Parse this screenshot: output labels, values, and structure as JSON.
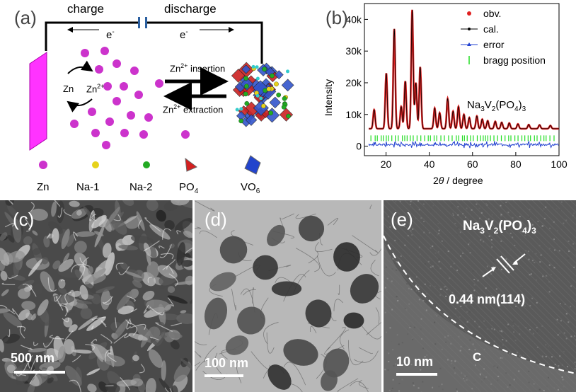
{
  "panel_a": {
    "label": "(a)",
    "charge": "charge",
    "discharge": "discharge",
    "electron_left": "e",
    "electron_right": "e",
    "electron_sup": "-",
    "zn": "Zn",
    "zn2": "Zn",
    "zn2_sup": "2+",
    "insertion_pre": "Zn",
    "insertion_sup": "2+",
    "insertion_post": " insertion",
    "extraction_pre": "Zn",
    "extraction_sup": "2+",
    "extraction_post": " extraction",
    "legend": [
      {
        "label": "Zn",
        "color": "#cc33cc"
      },
      {
        "label": "Na-1",
        "color": "#e6d21a"
      },
      {
        "label": "Na-2",
        "color": "#22aa22"
      },
      {
        "label": "PO",
        "sub": "4",
        "color": "#d42020"
      },
      {
        "label": "VO",
        "sub": "6",
        "color": "#2244cc"
      }
    ],
    "colors": {
      "zn_ion": "#cc33cc",
      "electrode": "#ff33ff",
      "wire": "#000000"
    }
  },
  "panel_b": {
    "label": "(b)",
    "compound": {
      "t1": "Na",
      "s1": "3",
      "t2": "V",
      "s2": "2",
      "t3": "(PO",
      "s3": "4",
      "t4": ")",
      "s4": "3"
    }
  },
  "chart_data": {
    "type": "line",
    "xlabel_pre": "2",
    "xlabel_theta": "θ",
    "xlabel_post": "/ degree",
    "ylabel": "Intensity",
    "xlim": [
      10,
      100
    ],
    "ylim": [
      -3000,
      45000
    ],
    "x_ticks": [
      "20",
      "40",
      "60",
      "80",
      "100"
    ],
    "y_ticks": [
      "0",
      "10k",
      "20k",
      "30k",
      "40k"
    ],
    "legend_placement": "top-right",
    "series": [
      {
        "name": "obv.",
        "color": "#e02020",
        "marker": "circle"
      },
      {
        "name": "cal.",
        "color": "#000000",
        "marker": "dot"
      },
      {
        "name": "error",
        "color": "#2040d0",
        "marker": "triangle"
      },
      {
        "name": "bragg position",
        "color": "#22dd22",
        "marker": "tick"
      }
    ],
    "background": 5500,
    "peaks": [
      {
        "x": 14.5,
        "y": 11500
      },
      {
        "x": 20.1,
        "y": 23000
      },
      {
        "x": 23.8,
        "y": 37000
      },
      {
        "x": 27.0,
        "y": 12500
      },
      {
        "x": 28.9,
        "y": 20500
      },
      {
        "x": 32.1,
        "y": 43000
      },
      {
        "x": 33.8,
        "y": 20000
      },
      {
        "x": 35.8,
        "y": 25000
      },
      {
        "x": 42.5,
        "y": 12000
      },
      {
        "x": 44.8,
        "y": 10500
      },
      {
        "x": 48.5,
        "y": 15000
      },
      {
        "x": 51.0,
        "y": 11000
      },
      {
        "x": 53.5,
        "y": 12500
      },
      {
        "x": 56.0,
        "y": 10000
      },
      {
        "x": 58.5,
        "y": 9000
      },
      {
        "x": 62.0,
        "y": 9500
      },
      {
        "x": 64.5,
        "y": 8500
      },
      {
        "x": 67.0,
        "y": 8000
      },
      {
        "x": 70.5,
        "y": 7800
      },
      {
        "x": 73.5,
        "y": 7500
      },
      {
        "x": 77.0,
        "y": 7300
      },
      {
        "x": 81.0,
        "y": 7000
      },
      {
        "x": 86.0,
        "y": 6800
      },
      {
        "x": 91.0,
        "y": 6700
      },
      {
        "x": 96.0,
        "y": 6500
      }
    ],
    "bragg_level": 2500,
    "error_level": 500
  },
  "panel_c": {
    "label": "(c)",
    "scale": "500 nm"
  },
  "panel_d": {
    "label": "(d)",
    "scale": "100 nm"
  },
  "panel_e": {
    "label": "(e)",
    "scale": "10 nm",
    "compound": {
      "t1": "Na",
      "s1": "3",
      "t2": "V",
      "s2": "2",
      "t3": "(PO",
      "s3": "4",
      "t4": ")",
      "s4": "3"
    },
    "spacing": "0.44 nm(114)",
    "c_label": "C"
  }
}
